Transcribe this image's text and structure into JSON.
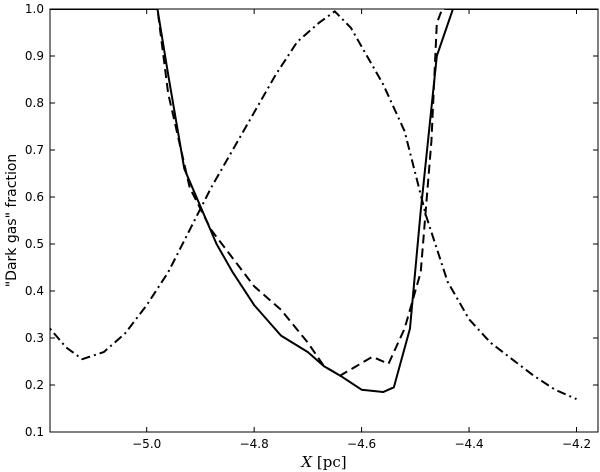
{
  "chart_data": {
    "type": "line",
    "title": "",
    "xlabel": "",
    "xlabel_italic": "X",
    "xlabel_unit": " [pc]",
    "ylabel": "\"Dark gas\" fraction",
    "xlim": [
      -5.18,
      -4.16
    ],
    "ylim": [
      0.1,
      1.0
    ],
    "xticks": [
      -5.0,
      -4.8,
      -4.6,
      -4.4,
      -4.2
    ],
    "xtick_labels": [
      "−5.0",
      "−4.8",
      "−4.6",
      "−4.4",
      "−4.2"
    ],
    "yticks": [
      0.1,
      0.2,
      0.3,
      0.4,
      0.5,
      0.6,
      0.7,
      0.8,
      0.9,
      1.0
    ],
    "ytick_labels": [
      "0.1",
      "0.2",
      "0.3",
      "0.4",
      "0.5",
      "0.6",
      "0.7",
      "0.8",
      "0.9",
      "1.0"
    ],
    "grid": false,
    "line_color": "#000000",
    "series": [
      {
        "style": "solid",
        "x": [
          -5.18,
          -4.98,
          -4.96,
          -4.93,
          -4.9,
          -4.87,
          -4.84,
          -4.8,
          -4.75,
          -4.7,
          -4.67,
          -4.64,
          -4.6,
          -4.56,
          -4.54,
          -4.51,
          -4.49,
          -4.46,
          -4.43,
          -4.4,
          -4.38,
          -4.16
        ],
        "y": [
          1.0,
          1.0,
          0.86,
          0.66,
          0.58,
          0.5,
          0.44,
          0.37,
          0.305,
          0.27,
          0.24,
          0.22,
          0.19,
          0.185,
          0.195,
          0.32,
          0.57,
          0.9,
          1.0,
          1.0,
          1.0,
          1.0
        ]
      },
      {
        "style": "dashed",
        "x": [
          -5.18,
          -4.98,
          -4.96,
          -4.92,
          -4.88,
          -4.84,
          -4.8,
          -4.75,
          -4.7,
          -4.67,
          -4.64,
          -4.61,
          -4.58,
          -4.55,
          -4.52,
          -4.49,
          -4.47,
          -4.46,
          -4.45,
          -4.16
        ],
        "y": [
          1.0,
          1.0,
          0.82,
          0.62,
          0.53,
          0.47,
          0.41,
          0.36,
          0.29,
          0.24,
          0.22,
          0.24,
          0.26,
          0.245,
          0.32,
          0.44,
          0.72,
          0.97,
          1.0,
          1.0
        ]
      },
      {
        "style": "dashdot",
        "x": [
          -5.18,
          -5.15,
          -5.12,
          -5.08,
          -5.04,
          -5.0,
          -4.96,
          -4.92,
          -4.88,
          -4.84,
          -4.8,
          -4.76,
          -4.72,
          -4.68,
          -4.65,
          -4.62,
          -4.59,
          -4.56,
          -4.52,
          -4.48,
          -4.44,
          -4.4,
          -4.36,
          -4.32,
          -4.28,
          -4.24,
          -4.2
        ],
        "y": [
          0.32,
          0.28,
          0.255,
          0.27,
          0.31,
          0.37,
          0.44,
          0.53,
          0.62,
          0.7,
          0.78,
          0.86,
          0.93,
          0.97,
          0.995,
          0.96,
          0.9,
          0.84,
          0.74,
          0.56,
          0.42,
          0.34,
          0.29,
          0.255,
          0.22,
          0.19,
          0.17
        ]
      }
    ]
  }
}
